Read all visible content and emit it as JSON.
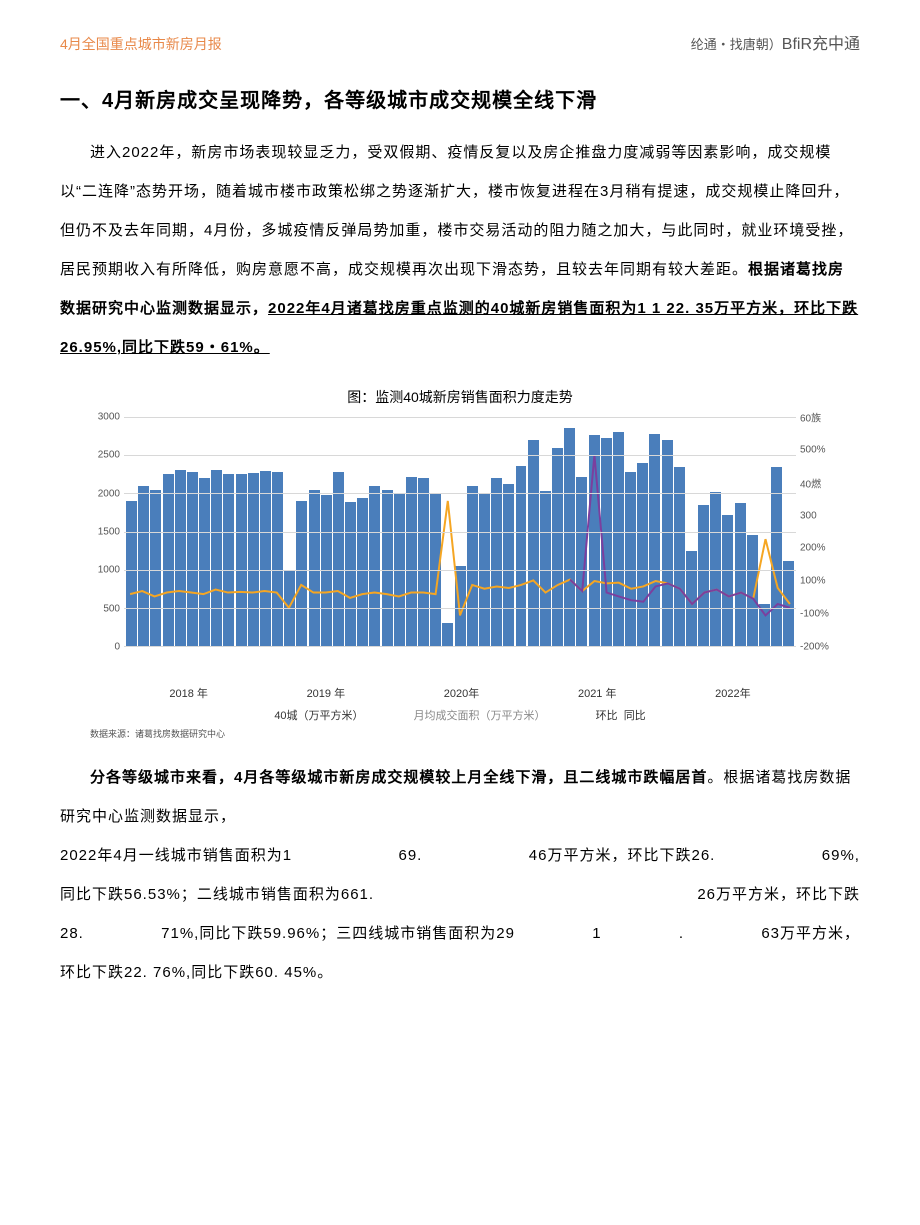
{
  "header": {
    "left": "4月全国重点城市新房月报",
    "right_small": "纶通・找唐朝）",
    "right_big": "BfiR充中通"
  },
  "title": "一、4月新房成交呈现降势，各等级城市成交规模全线下滑",
  "para1_plain": "进入2022年，新房市场表现较显乏力，受双假期、疫情反复以及房企推盘力度减弱等因素影响，成交规模以“二连降”态势开场，随着城市楼市政策松绑之势逐渐扩大，楼市恢复进程在3月稍有提速，成交规模止降回升，但仍不及去年同期，4月份，多城疫情反弹局势加重，楼市交易活动的阻力随之加大，与此同时，就业环境受挫，居民预期收入有所降低，购房意愿不高，成交规模再次出现下滑态势，且较去年同期有较大差距。",
  "para1_bold": "根据诸葛找房数据研究中心监测数据显示，",
  "para1_under1": "2022年4月诸葛找房重点监测的40城新房销售面积为1 1 22. 35万平方米，环比下跌26.95%,同比下跌59・61%。",
  "chart": {
    "title": "图：监测40城新房销售面积力度走势",
    "y_left_max": 3000,
    "y_left_ticks": [
      "3000",
      "2500",
      "2000",
      "1500",
      "1000",
      "500",
      "0"
    ],
    "y_right_ticks": [
      "60族",
      "500%",
      "40燃",
      "300",
      "200%",
      "100%",
      "-100%",
      "-200%"
    ],
    "bar_color": "#4a7ebb",
    "line1_color": "#f5a623",
    "line2_color": "#7b3f9e",
    "grid_color": "#d8d8d8",
    "bars": [
      1900,
      2100,
      2050,
      2250,
      2300,
      2280,
      2200,
      2300,
      2250,
      2260,
      2270,
      2290,
      2280,
      1000,
      1900,
      2050,
      1980,
      2280,
      1890,
      1940,
      2100,
      2050,
      2000,
      2210,
      2200,
      2000,
      300,
      1050,
      2100,
      2000,
      2200,
      2120,
      2360,
      2700,
      2030,
      2600,
      2850,
      2210,
      2770,
      2720,
      2800,
      2280,
      2400,
      2780,
      2700,
      2350,
      1250,
      1850,
      2020,
      1720,
      1880,
      1450,
      550,
      2350,
      1120
    ],
    "line_orange": [
      680,
      720,
      650,
      700,
      720,
      700,
      680,
      740,
      700,
      710,
      700,
      720,
      700,
      500,
      800,
      700,
      700,
      720,
      630,
      680,
      700,
      680,
      650,
      700,
      700,
      680,
      1900,
      400,
      800,
      750,
      780,
      760,
      800,
      860,
      700,
      800,
      870,
      720,
      850,
      820,
      830,
      750,
      780,
      850,
      820,
      750,
      550,
      700,
      740,
      650,
      700,
      620,
      1400,
      760,
      550
    ],
    "line_purple_start_index": 36,
    "line_purple": [
      870,
      720,
      2500,
      700,
      650,
      600,
      580,
      780,
      820,
      750,
      550,
      700,
      740,
      650,
      700,
      620,
      400,
      550,
      500
    ],
    "years": [
      "2018 年",
      "2019 年",
      "2020年",
      "2021 年",
      "2022年"
    ],
    "legend1": "40城（万平方米）",
    "legend2": "月均成交面积（万平方米）",
    "legend3": "环比",
    "legend4": "同比",
    "source": "数据来源：诸葛找房数据研究中心"
  },
  "para2_bold1": "分各等级城市来看，4月各等级城市新房成交规模较上月全线下滑，且二线城市跌幅居首",
  "para2_plain1": "。根据诸葛找房数据研究中心监测数据显示，",
  "row1": {
    "a": "2022年4月一线城市销售面积为1",
    "b": "69.",
    "c": "46万平方米，环比下跌26.",
    "d": "69%,"
  },
  "row2": {
    "a": "同比下跌56.53%；二线城市销售面积为661.",
    "b": "26万平方米，环比下跌"
  },
  "row3": {
    "a": "28.",
    "b": "71%,同比下跌59.96%；三四线城市销售面积为29",
    "c": "1",
    "d": ".",
    "e": "63万平方米，"
  },
  "row4": "环比下跌22. 76%,同比下跌60. 45%。"
}
